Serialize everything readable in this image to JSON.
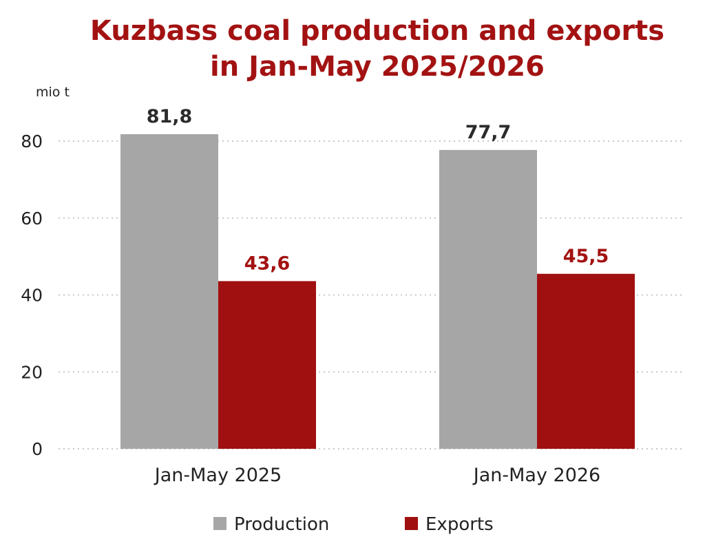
{
  "chart_data": {
    "type": "bar",
    "title": [
      "Kuzbass coal production and exports",
      "in Jan-May 2025/2026"
    ],
    "ylabel": "mio t",
    "xlabel": "",
    "categories": [
      "Jan-May 2025",
      "Jan-May 2026"
    ],
    "series": [
      {
        "name": "Production",
        "color": "#a6a6a6",
        "label_color": "#2b2b2b",
        "values": [
          81.8,
          77.7
        ],
        "labels": [
          "81,8",
          "77,7"
        ]
      },
      {
        "name": "Exports",
        "color": "#a01010",
        "label_color": "#a31212",
        "values": [
          43.6,
          45.5
        ],
        "labels": [
          "43,6",
          "45,5"
        ]
      }
    ],
    "ylim": [
      0,
      80
    ],
    "yticks": [
      0,
      20,
      40,
      60,
      80
    ],
    "ytick_labels": [
      "0",
      "20",
      "40",
      "60",
      "80"
    ],
    "grid": true,
    "grid_style": "dotted",
    "legend_position": "bottom"
  }
}
